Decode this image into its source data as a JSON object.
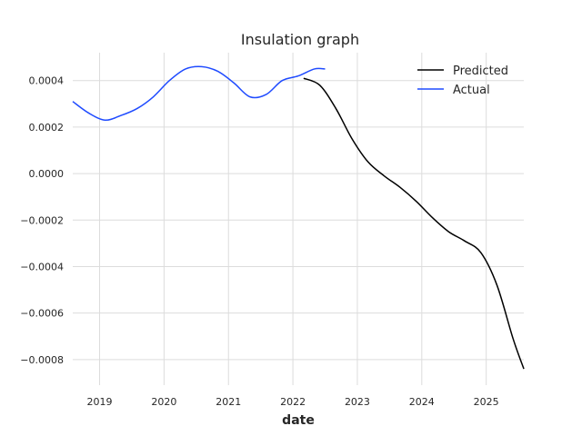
{
  "chart_data": {
    "type": "line",
    "title": "Insulation graph",
    "xlabel": "date",
    "ylabel": "",
    "x_ticks": [
      "2019",
      "2020",
      "2021",
      "2022",
      "2023",
      "2024",
      "2025"
    ],
    "y_ticks": [
      "0.0004",
      "0.0002",
      "0.0000",
      "−0.0002",
      "−0.0004",
      "−0.0006",
      "−0.0008"
    ],
    "xlim": [
      "2018-08-01",
      "2025-08-01"
    ],
    "ylim": [
      -0.00091,
      0.00052
    ],
    "grid": true,
    "legend_position": "top-right",
    "series": [
      {
        "name": "Predicted",
        "color": "#000000",
        "points": [
          [
            "2022-03-01",
            0.00041
          ],
          [
            "2022-06-01",
            0.00038
          ],
          [
            "2022-09-01",
            0.00028
          ],
          [
            "2022-12-01",
            0.00015
          ],
          [
            "2023-03-01",
            5e-05
          ],
          [
            "2023-06-01",
            -1e-05
          ],
          [
            "2023-09-01",
            -6e-05
          ],
          [
            "2023-12-01",
            -0.00012
          ],
          [
            "2024-03-01",
            -0.00019
          ],
          [
            "2024-06-01",
            -0.00025
          ],
          [
            "2024-09-01",
            -0.00029
          ],
          [
            "2024-12-01",
            -0.00034
          ],
          [
            "2025-03-01",
            -0.00048
          ],
          [
            "2025-06-01",
            -0.00071
          ],
          [
            "2025-08-01",
            -0.00084
          ]
        ]
      },
      {
        "name": "Actual",
        "color": "#1f4bff",
        "points": [
          [
            "2018-08-01",
            0.00031
          ],
          [
            "2018-11-01",
            0.00026
          ],
          [
            "2019-02-01",
            0.00023
          ],
          [
            "2019-05-01",
            0.00025
          ],
          [
            "2019-08-01",
            0.00028
          ],
          [
            "2019-11-01",
            0.00033
          ],
          [
            "2020-02-01",
            0.0004
          ],
          [
            "2020-05-01",
            0.00045
          ],
          [
            "2020-08-01",
            0.00046
          ],
          [
            "2020-11-01",
            0.00044
          ],
          [
            "2021-02-01",
            0.00039
          ],
          [
            "2021-05-01",
            0.00033
          ],
          [
            "2021-08-01",
            0.00034
          ],
          [
            "2021-11-01",
            0.0004
          ],
          [
            "2022-02-01",
            0.00042
          ],
          [
            "2022-05-01",
            0.00045
          ],
          [
            "2022-07-01",
            0.00045
          ]
        ]
      }
    ]
  }
}
